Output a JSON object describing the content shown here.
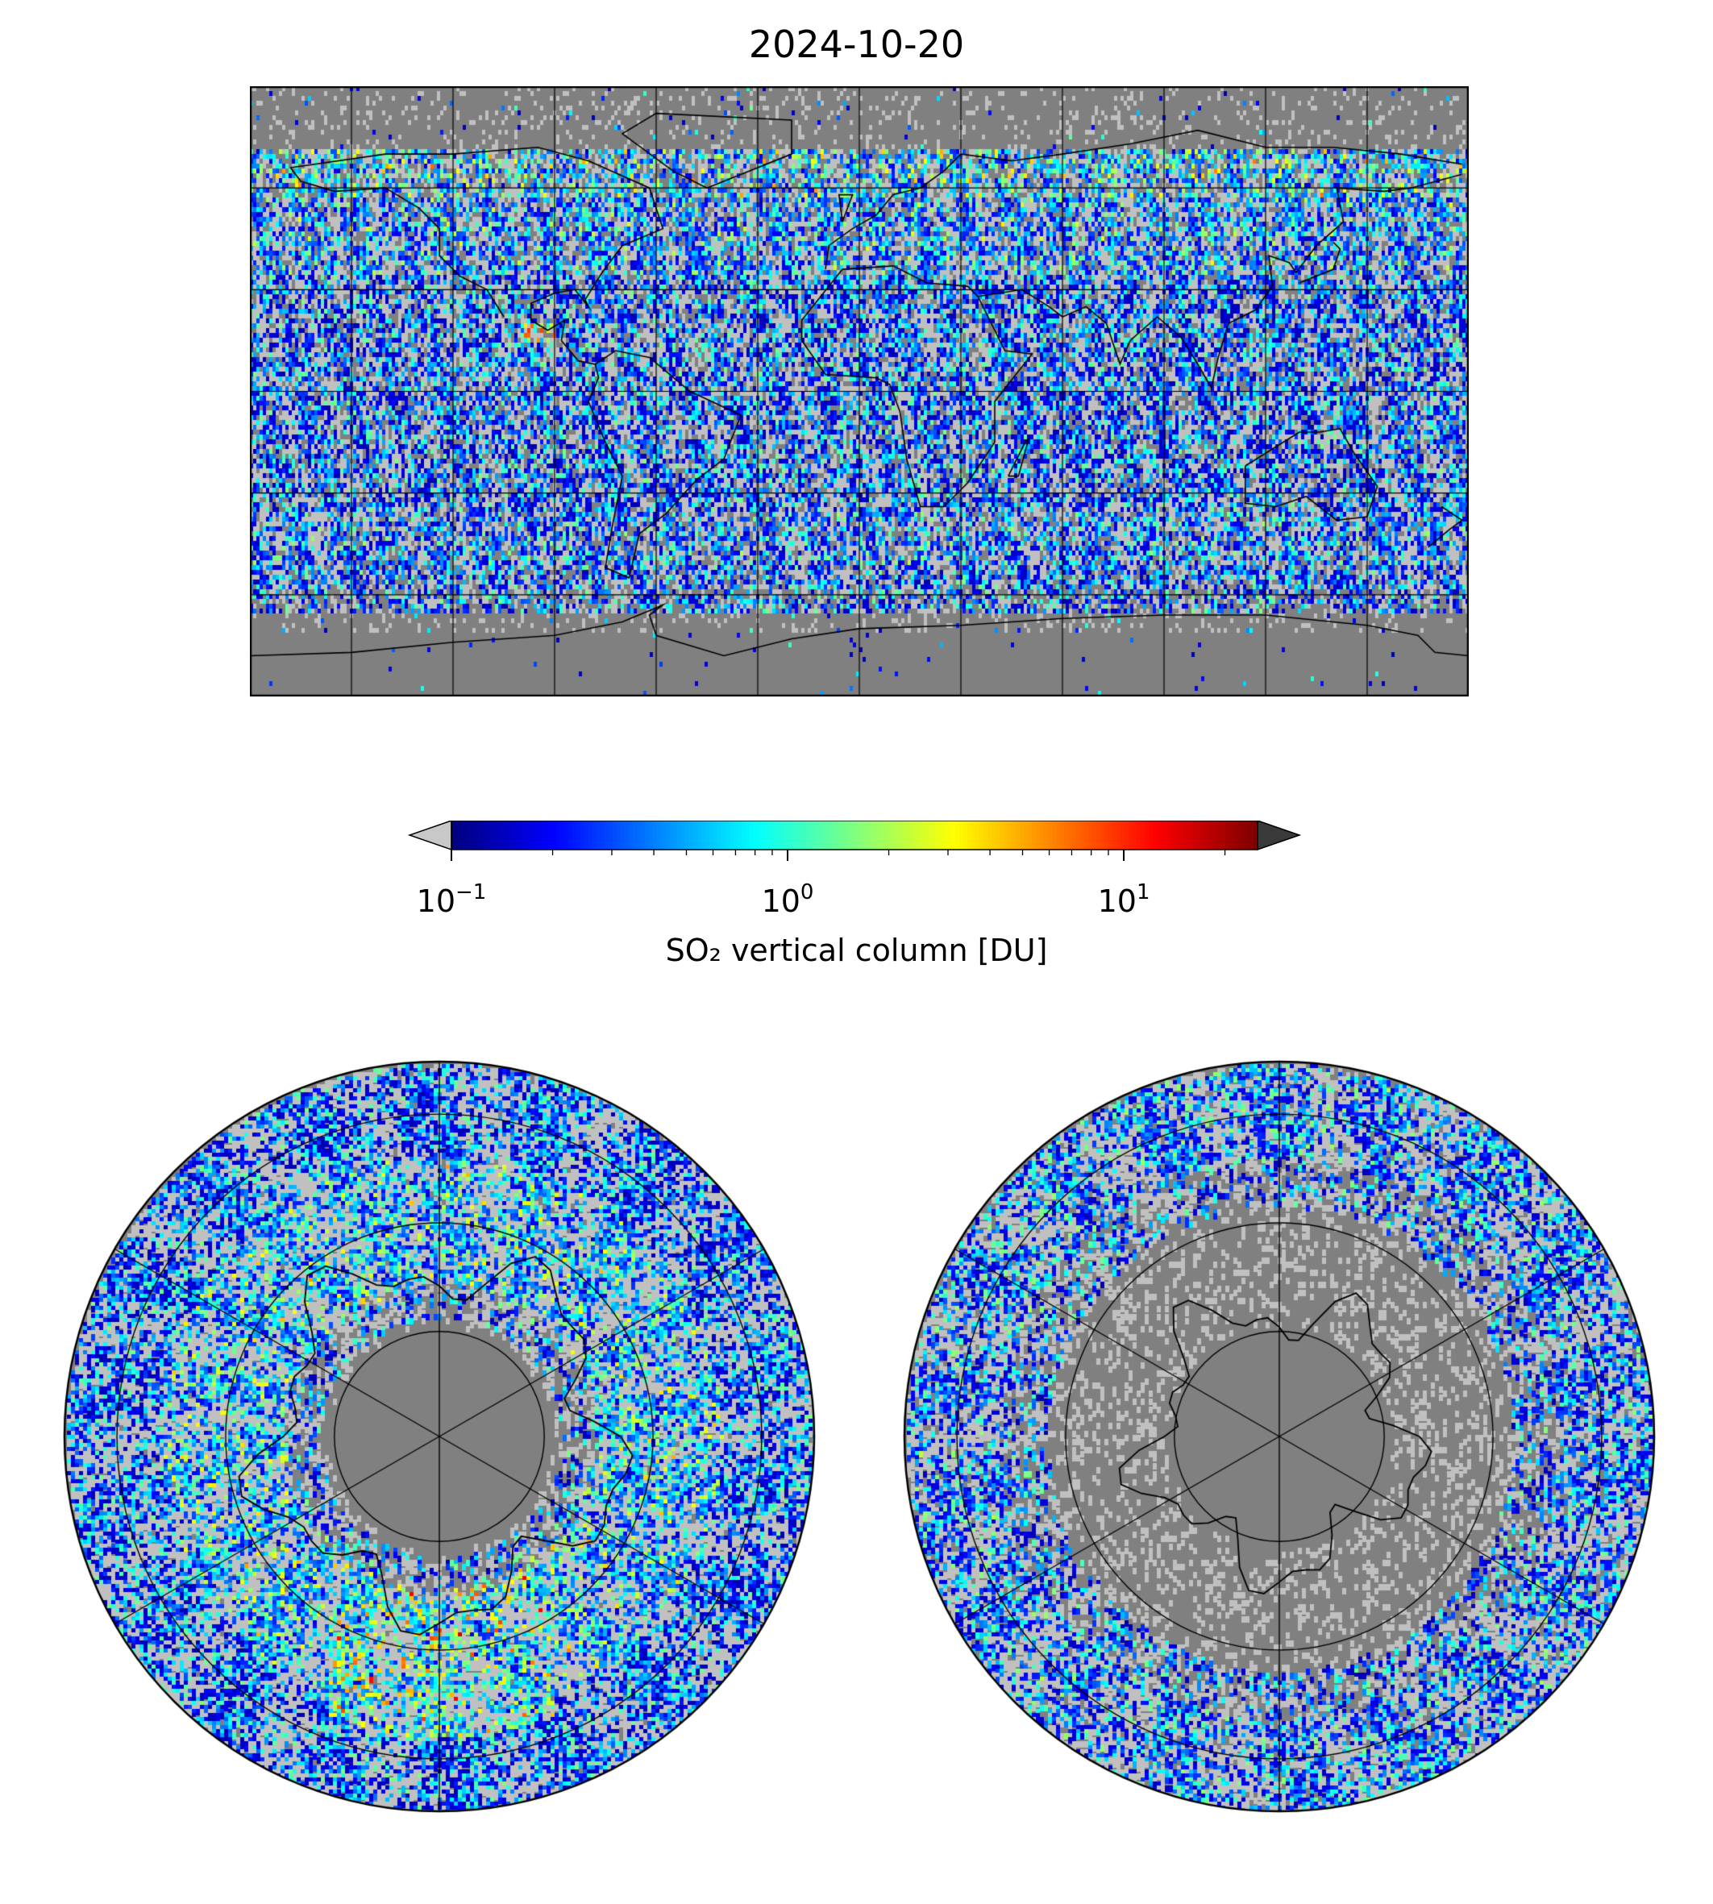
{
  "title": "2024-10-20",
  "colorbar": {
    "label": "SO₂ vertical column [DU]",
    "scale": "log",
    "colormap": "jet",
    "range": [
      0.1,
      25
    ],
    "extend": "both",
    "under_color": "#c8c8c8",
    "over_color": "#3a3a3a",
    "ticks": [
      {
        "value": 0.1,
        "base": "10",
        "exp": "−1"
      },
      {
        "value": 1,
        "base": "10",
        "exp": "0"
      },
      {
        "value": 10,
        "base": "10",
        "exp": "1"
      }
    ]
  },
  "maps": {
    "background_color": "#808080",
    "no_data_color": "#c0c0c0",
    "global": {
      "projection": "PlateCarree",
      "lon_range": [
        -180,
        180
      ],
      "lat_range": [
        -90,
        90
      ],
      "gridlines": "every 30 degrees"
    },
    "north_polar": {
      "projection": "North Polar Stereographic"
    },
    "south_polar": {
      "projection": "South Polar Stereographic"
    }
  }
}
